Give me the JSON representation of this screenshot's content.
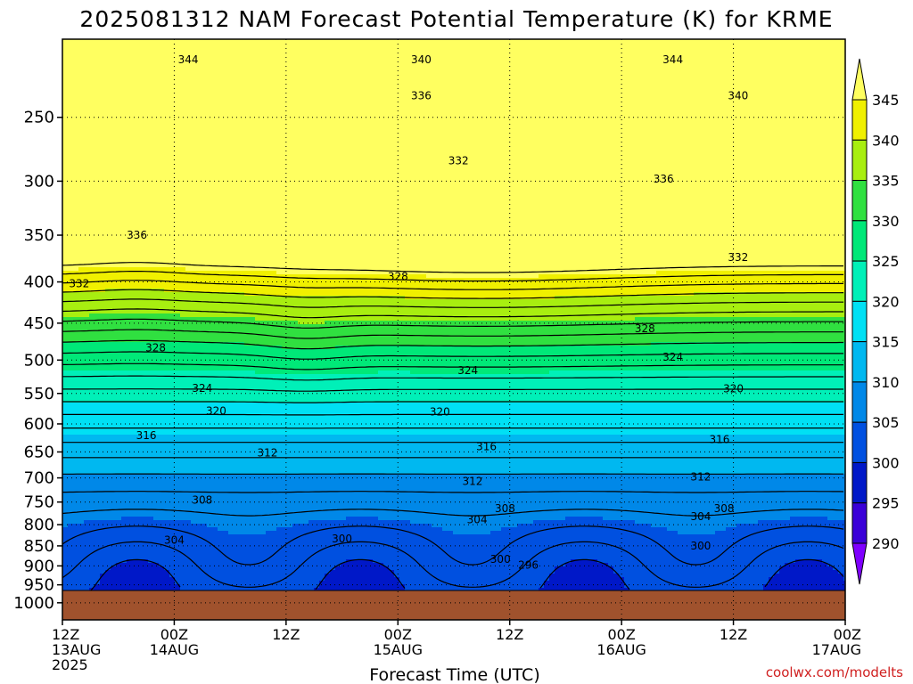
{
  "chart_data": {
    "type": "heatmap",
    "title": "2025081312 NAM Forecast Potential Temperature (K) for KRME",
    "xlabel": "Forecast Time (UTC)",
    "ylabel": "",
    "y_axis": {
      "scale": "log",
      "inverted": true,
      "range": [
        1050,
        200
      ],
      "ticks": [
        250,
        300,
        350,
        400,
        450,
        500,
        550,
        600,
        650,
        700,
        750,
        800,
        850,
        900,
        950,
        1000
      ]
    },
    "x_axis": {
      "range_hours": [
        0,
        84
      ],
      "ticks": [
        {
          "hour": 0,
          "line1": "12Z",
          "line2": "13AUG",
          "line3": "2025"
        },
        {
          "hour": 12,
          "line1": "00Z",
          "line2": "14AUG",
          "line3": ""
        },
        {
          "hour": 24,
          "line1": "12Z",
          "line2": "",
          "line3": ""
        },
        {
          "hour": 36,
          "line1": "00Z",
          "line2": "15AUG",
          "line3": ""
        },
        {
          "hour": 48,
          "line1": "12Z",
          "line2": "",
          "line3": ""
        },
        {
          "hour": 60,
          "line1": "00Z",
          "line2": "16AUG",
          "line3": ""
        },
        {
          "hour": 72,
          "line1": "12Z",
          "line2": "",
          "line3": ""
        },
        {
          "hour": 84,
          "line1": "00Z",
          "line2": "17AUG",
          "line3": ""
        }
      ]
    },
    "grid": true,
    "terrain_color": "#a0522d",
    "colorbar": {
      "levels": [
        290,
        295,
        300,
        305,
        310,
        315,
        320,
        325,
        330,
        335,
        340,
        345
      ],
      "colors": [
        "#7f00ff",
        "#3a00d8",
        "#0018c8",
        "#0050e0",
        "#0088e8",
        "#00b8f0",
        "#00e0f4",
        "#00f0b8",
        "#00e878",
        "#30e040",
        "#a8ee10",
        "#f0f000",
        "#ffff60"
      ]
    },
    "contour_labels": [
      {
        "hour": 13.5,
        "p": 212,
        "text": "344"
      },
      {
        "hour": 38.5,
        "p": 212,
        "text": "340"
      },
      {
        "hour": 65.5,
        "p": 212,
        "text": "344"
      },
      {
        "hour": 38.5,
        "p": 235,
        "text": "336"
      },
      {
        "hour": 72.5,
        "p": 235,
        "text": "340"
      },
      {
        "hour": 42.5,
        "p": 283,
        "text": "332"
      },
      {
        "hour": 64.5,
        "p": 298,
        "text": "336"
      },
      {
        "hour": 8.0,
        "p": 350,
        "text": "336"
      },
      {
        "hour": 72.5,
        "p": 373,
        "text": "332"
      },
      {
        "hour": 1.8,
        "p": 402,
        "text": "332"
      },
      {
        "hour": 36.0,
        "p": 394,
        "text": "328"
      },
      {
        "hour": 62.5,
        "p": 457,
        "text": "328"
      },
      {
        "hour": 10.0,
        "p": 483,
        "text": "328"
      },
      {
        "hour": 43.5,
        "p": 515,
        "text": "324"
      },
      {
        "hour": 65.5,
        "p": 496,
        "text": "324"
      },
      {
        "hour": 15.0,
        "p": 542,
        "text": "324"
      },
      {
        "hour": 72.0,
        "p": 543,
        "text": "320"
      },
      {
        "hour": 16.5,
        "p": 578,
        "text": "320"
      },
      {
        "hour": 40.5,
        "p": 580,
        "text": "320"
      },
      {
        "hour": 9.0,
        "p": 620,
        "text": "316"
      },
      {
        "hour": 45.5,
        "p": 640,
        "text": "316"
      },
      {
        "hour": 70.5,
        "p": 627,
        "text": "316"
      },
      {
        "hour": 22.0,
        "p": 652,
        "text": "312"
      },
      {
        "hour": 44.0,
        "p": 707,
        "text": "312"
      },
      {
        "hour": 68.5,
        "p": 698,
        "text": "312"
      },
      {
        "hour": 15.0,
        "p": 746,
        "text": "308"
      },
      {
        "hour": 47.5,
        "p": 764,
        "text": "308"
      },
      {
        "hour": 71.0,
        "p": 764,
        "text": "308"
      },
      {
        "hour": 44.5,
        "p": 789,
        "text": "304"
      },
      {
        "hour": 68.5,
        "p": 782,
        "text": "304"
      },
      {
        "hour": 12.0,
        "p": 836,
        "text": "304"
      },
      {
        "hour": 30.0,
        "p": 833,
        "text": "300"
      },
      {
        "hour": 47.0,
        "p": 883,
        "text": "300"
      },
      {
        "hour": 68.5,
        "p": 850,
        "text": "300"
      },
      {
        "hour": 50.0,
        "p": 898,
        "text": "296"
      }
    ]
  },
  "credit": "coolwx.com/modelts"
}
